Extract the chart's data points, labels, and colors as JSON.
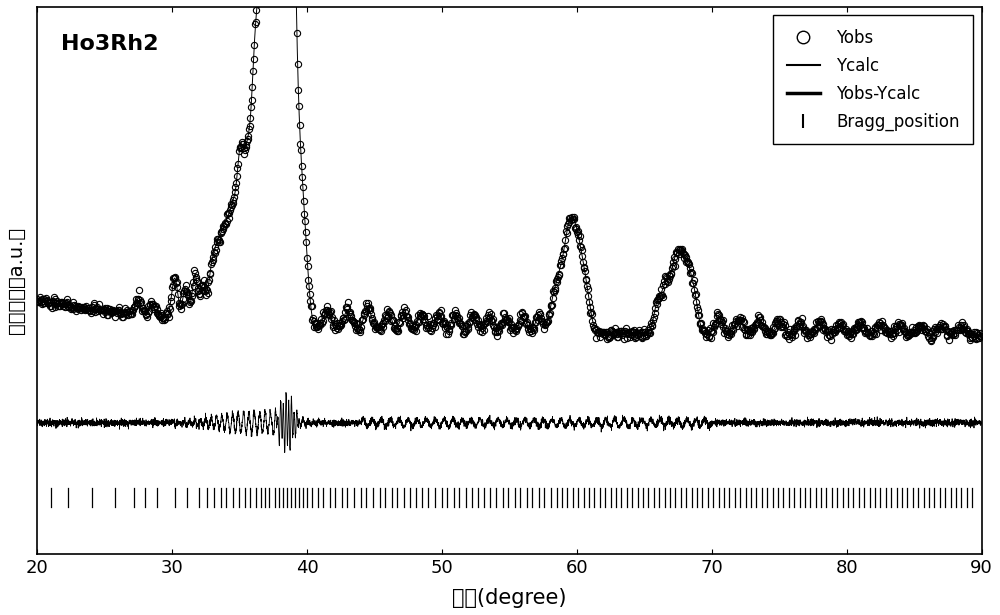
{
  "title": "Ho3Rh2",
  "xlabel": "角度(degree)",
  "ylabel": "衍射强度（a.u.）",
  "xlim": [
    20,
    90
  ],
  "xticks": [
    20,
    30,
    40,
    50,
    60,
    70,
    80,
    90
  ],
  "background_color": "#ffffff",
  "bragg_positions": [
    21.0,
    22.3,
    24.1,
    25.8,
    27.2,
    28.0,
    28.9,
    30.2,
    31.1,
    32.0,
    32.6,
    33.1,
    33.6,
    34.0,
    34.5,
    35.0,
    35.4,
    35.8,
    36.2,
    36.6,
    36.9,
    37.2,
    37.6,
    37.9,
    38.2,
    38.5,
    38.8,
    39.1,
    39.4,
    39.7,
    40.0,
    40.4,
    40.8,
    41.2,
    41.7,
    42.1,
    42.6,
    43.0,
    43.5,
    44.0,
    44.4,
    44.9,
    45.4,
    45.8,
    46.3,
    46.7,
    47.2,
    47.6,
    48.1,
    48.5,
    49.0,
    49.5,
    50.0,
    50.4,
    50.9,
    51.3,
    51.8,
    52.2,
    52.7,
    53.1,
    53.6,
    54.0,
    54.5,
    54.9,
    55.4,
    55.8,
    56.3,
    56.7,
    57.2,
    57.6,
    58.1,
    58.5,
    58.9,
    59.3,
    59.7,
    60.1,
    60.5,
    60.9,
    61.3,
    61.7,
    62.1,
    62.5,
    62.9,
    63.3,
    63.7,
    64.1,
    64.5,
    64.9,
    65.3,
    65.7,
    66.1,
    66.5,
    66.9,
    67.3,
    67.7,
    68.1,
    68.5,
    68.9,
    69.3,
    69.7,
    70.1,
    70.5,
    70.9,
    71.3,
    71.7,
    72.1,
    72.5,
    72.9,
    73.3,
    73.7,
    74.1,
    74.5,
    74.9,
    75.3,
    75.7,
    76.1,
    76.5,
    76.9,
    77.3,
    77.7,
    78.1,
    78.5,
    78.9,
    79.3,
    79.7,
    80.1,
    80.5,
    80.9,
    81.3,
    81.7,
    82.1,
    82.5,
    82.9,
    83.3,
    83.7,
    84.1,
    84.5,
    84.9,
    85.3,
    85.7,
    86.1,
    86.5,
    86.9,
    87.3,
    87.7,
    88.1,
    88.5,
    88.9,
    89.3
  ],
  "legend_labels": [
    "Yobs",
    "Ycalc",
    "Yobs-Ycalc",
    "Bragg_position"
  ]
}
